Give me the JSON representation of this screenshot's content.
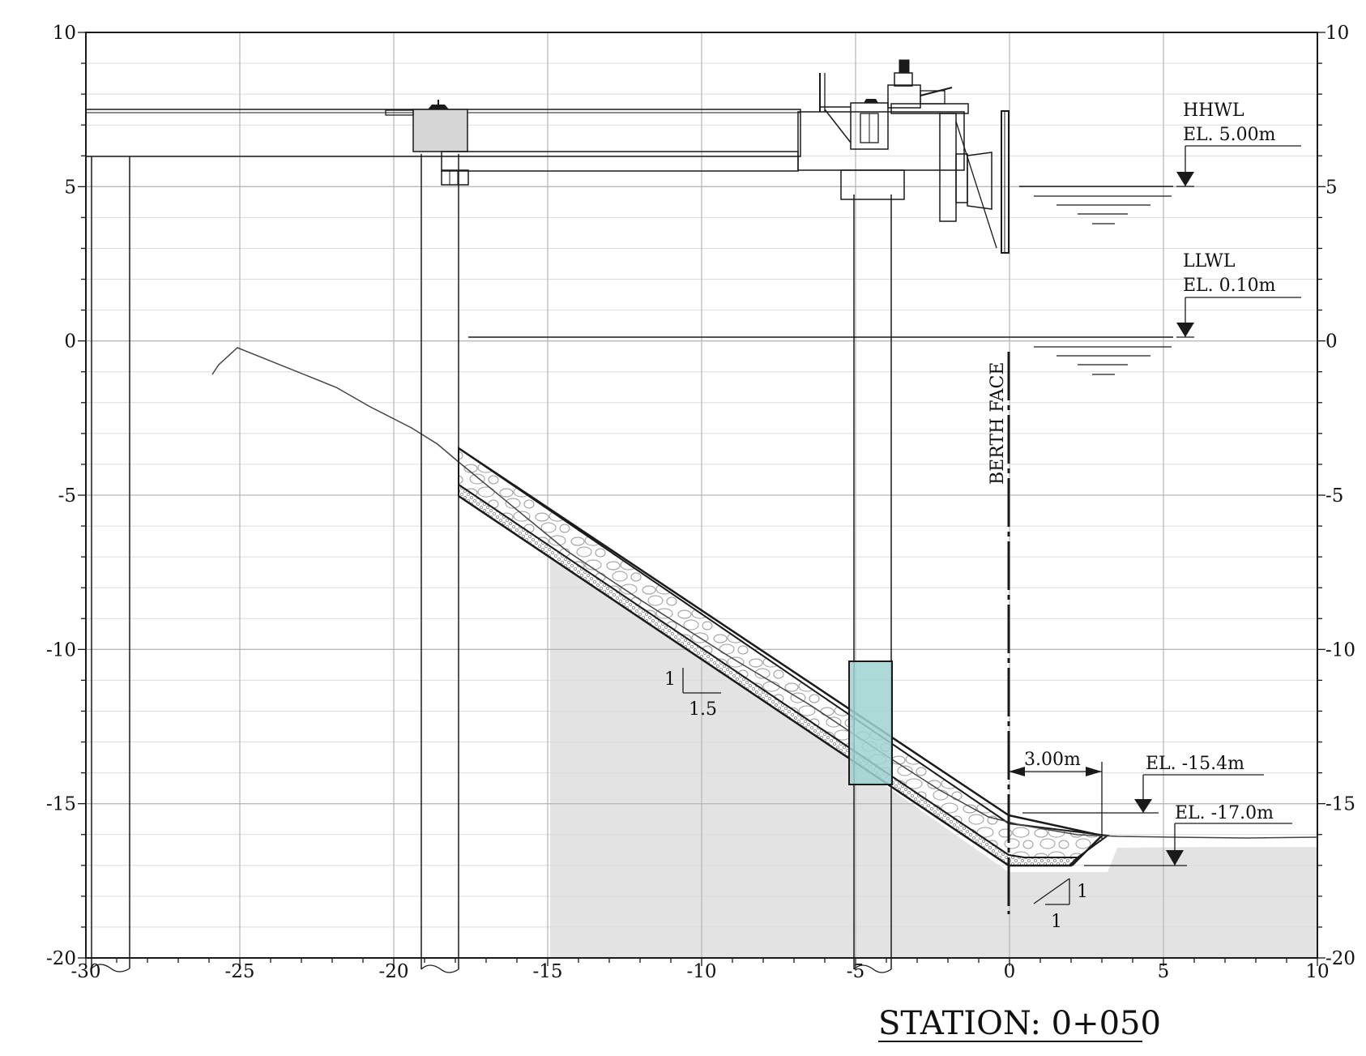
{
  "title": "STATION: 0+050",
  "x_axis": {
    "min": -30,
    "max": 10,
    "ticks": [
      -30,
      -25,
      -20,
      -15,
      -10,
      -5,
      0,
      5,
      10
    ]
  },
  "y_axis": {
    "min": -20,
    "max": 10,
    "ticks": [
      10,
      5,
      0,
      -5,
      -10,
      -15,
      -20
    ]
  },
  "labels": {
    "hhwl": "HHWL",
    "hhwl_el": "EL. 5.00m",
    "llwl": "LLWL",
    "llwl_el": "EL. 0.10m",
    "berth_face": "BERTH FACE",
    "toe_width": "3.00m",
    "el_toe_top": "EL. -15.4m",
    "el_toe_bottom": "EL. -17.0m",
    "slope_rise": "1",
    "slope_run": "1.5",
    "toe_slope_rise": "1",
    "toe_slope_run": "1"
  },
  "colors": {
    "seabed_fill": "#e3e3e3",
    "pile_cap_fill": "#d6d6d6",
    "highlight_fill": "#9fd4d2",
    "highlight_stroke": "#2f6f6d",
    "ink": "#1a1a1a"
  },
  "levels": {
    "hhwl_el": 5.0,
    "llwl_el": 0.1,
    "toe_top_el": -15.4,
    "toe_bottom_el": -17.0
  }
}
